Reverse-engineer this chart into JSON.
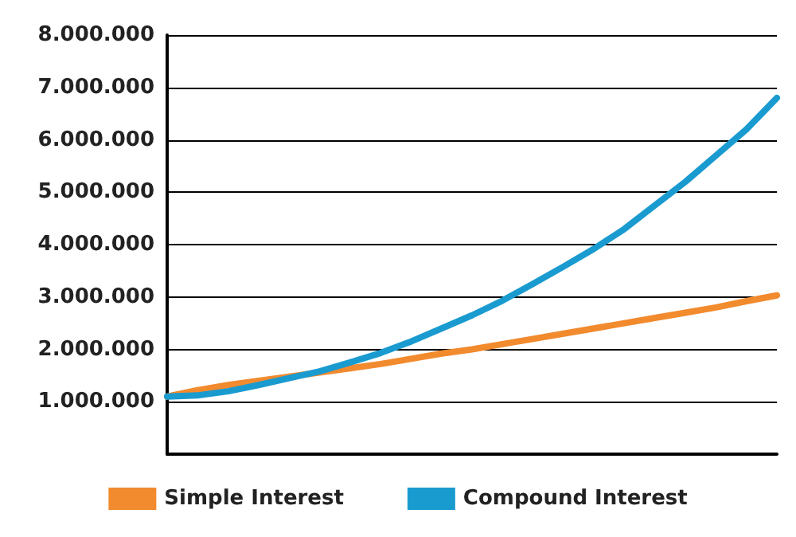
{
  "chart_data": {
    "type": "line",
    "categories": [
      null,
      null,
      null,
      null,
      null,
      null,
      null,
      null,
      null,
      null,
      null,
      null,
      null,
      null,
      null,
      null,
      null,
      null,
      null,
      null,
      null
    ],
    "series": [
      {
        "name": "Simple Interest",
        "color": "#f28a2e",
        "values": [
          1100000,
          1220000,
          1320000,
          1400000,
          1480000,
          1560000,
          1640000,
          1720000,
          1820000,
          1920000,
          2000000,
          2100000,
          2200000,
          2300000,
          2400000,
          2500000,
          2600000,
          2700000,
          2800000,
          2920000,
          3030000
        ]
      },
      {
        "name": "Compound Interest",
        "color": "#1a9bd0",
        "values": [
          1100000,
          1120000,
          1200000,
          1320000,
          1450000,
          1580000,
          1750000,
          1930000,
          2150000,
          2400000,
          2650000,
          2930000,
          3250000,
          3580000,
          3920000,
          4300000,
          4750000,
          5200000,
          5700000,
          6200000,
          6800000
        ]
      }
    ],
    "ylim": [
      0,
      8000000
    ],
    "yticks": [
      {
        "value": 1000000,
        "label": "1.000.000"
      },
      {
        "value": 2000000,
        "label": "2.000.000"
      },
      {
        "value": 3000000,
        "label": "3.000.000"
      },
      {
        "value": 4000000,
        "label": "4.000.000"
      },
      {
        "value": 5000000,
        "label": "5.000.000"
      },
      {
        "value": 6000000,
        "label": "6.000.000"
      },
      {
        "value": 7000000,
        "label": "7.000.000"
      },
      {
        "value": 8000000,
        "label": "8.000.000"
      }
    ],
    "grid": "y",
    "legend": "bottom",
    "marker": "none",
    "line_style": "solid",
    "tick_labels": "y"
  }
}
